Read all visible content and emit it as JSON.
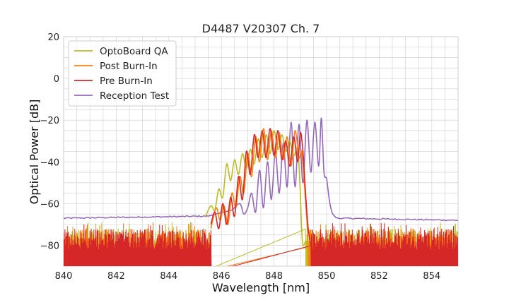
{
  "chart_data": {
    "type": "line",
    "title": "D4487 V20307 Ch. 7",
    "xlabel": "Wavelength [nm]",
    "ylabel": "Optical Power [dB]",
    "xlim": [
      840,
      855
    ],
    "ylim": [
      -90,
      20
    ],
    "xticks": [
      840,
      842,
      844,
      846,
      848,
      850,
      852,
      854
    ],
    "yticks": [
      20,
      0,
      -20,
      -40,
      -60,
      -80
    ],
    "grid": true,
    "legend_position": "top-left",
    "series": [
      {
        "name": "OptoBoard QA",
        "color": "#bcbd22",
        "noise_ranges": [
          [
            840.0,
            845.4
          ],
          [
            849.2,
            855.0
          ]
        ],
        "x": [
          845.4,
          845.6,
          845.75,
          845.9,
          846.05,
          846.2,
          846.35,
          846.5,
          846.65,
          846.8,
          846.95,
          847.1,
          847.25,
          847.4,
          847.55,
          847.7,
          847.85,
          848.0,
          848.15,
          848.3,
          848.45,
          848.6,
          848.75,
          848.9,
          849.0,
          849.05,
          849.1,
          849.2
        ],
        "y": [
          -66,
          -61,
          -63,
          -53,
          -57,
          -41,
          -49,
          -39,
          -46,
          -36,
          -43,
          -34,
          -41,
          -29,
          -38,
          -27,
          -36,
          -25,
          -34,
          -27,
          -35,
          -30,
          -37,
          -34,
          -55,
          -72,
          -80,
          -78
        ]
      },
      {
        "name": "Post Burn-In",
        "color": "#ff7f0e",
        "noise_ranges": [
          [
            840.0,
            845.6
          ],
          [
            849.3,
            855.0
          ]
        ],
        "x": [
          845.6,
          845.8,
          845.95,
          846.1,
          846.25,
          846.4,
          846.55,
          846.7,
          846.85,
          847.0,
          847.15,
          847.3,
          847.45,
          847.6,
          847.75,
          847.9,
          848.05,
          848.2,
          848.35,
          848.5,
          848.65,
          848.8,
          848.95,
          849.05,
          849.15,
          849.25,
          849.3
        ],
        "y": [
          -72,
          -62,
          -68,
          -61,
          -70,
          -55,
          -62,
          -47,
          -55,
          -36,
          -47,
          -28,
          -40,
          -24,
          -39,
          -25,
          -38,
          -26,
          -39,
          -28,
          -42,
          -25,
          -38,
          -35,
          -50,
          -68,
          -80
        ]
      },
      {
        "name": "Pre Burn-In",
        "color": "#d62728",
        "noise_ranges": [
          [
            840.0,
            845.6
          ],
          [
            849.4,
            855.0
          ]
        ],
        "x": [
          845.6,
          845.75,
          845.9,
          846.05,
          846.2,
          846.35,
          846.5,
          846.65,
          846.8,
          846.95,
          847.1,
          847.25,
          847.4,
          847.55,
          847.7,
          847.85,
          848.0,
          848.15,
          848.3,
          848.45,
          848.6,
          848.75,
          848.9,
          849.0,
          849.1,
          849.2,
          849.3,
          849.4
        ],
        "y": [
          -70,
          -64,
          -72,
          -60,
          -70,
          -57,
          -66,
          -47,
          -58,
          -35,
          -46,
          -27,
          -38,
          -25,
          -38,
          -24,
          -37,
          -25,
          -39,
          -30,
          -42,
          -28,
          -40,
          -26,
          -35,
          -55,
          -72,
          -80
        ]
      },
      {
        "name": "Reception Test",
        "color": "#9467bd",
        "floor_ranges": [
          [
            840.0,
            845.5,
            -67.0,
            -66.0
          ],
          [
            850.4,
            855.0,
            -67.0,
            -68.0
          ]
        ],
        "x": [
          845.5,
          845.8,
          846.1,
          846.4,
          846.7,
          846.85,
          847.0,
          847.15,
          847.3,
          847.45,
          847.6,
          847.75,
          847.9,
          848.05,
          848.2,
          848.35,
          848.5,
          848.65,
          848.8,
          848.95,
          849.1,
          849.25,
          849.4,
          849.55,
          849.7,
          849.8,
          849.9,
          850.0,
          850.1,
          850.2,
          850.3,
          850.4
        ],
        "y": [
          -66,
          -65,
          -64,
          -63,
          -60,
          -65,
          -62,
          -55,
          -64,
          -44,
          -62,
          -40,
          -58,
          -35,
          -55,
          -31,
          -52,
          -21,
          -52,
          -22,
          -50,
          -20,
          -45,
          -21,
          -42,
          -19,
          -45,
          -48,
          -58,
          -64,
          -66,
          -67
        ]
      }
    ]
  }
}
